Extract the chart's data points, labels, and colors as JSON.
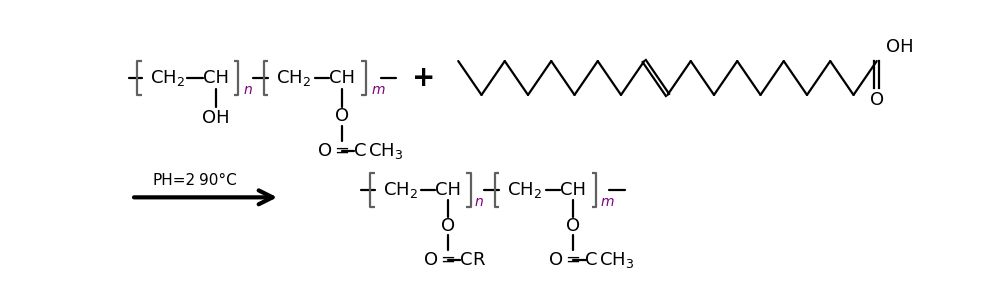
{
  "fig_width": 10.0,
  "fig_height": 2.97,
  "dpi": 100,
  "bg_color": "#ffffff",
  "text_color": "#000000",
  "bracket_color": "#606060",
  "bond_color": "#000000",
  "subscript_color": "#800080",
  "arrow_color": "#000000",
  "condition_text1": "PH=2",
  "condition_text2": "90°C",
  "xlim": [
    0,
    1000
  ],
  "ylim": [
    0,
    297
  ]
}
